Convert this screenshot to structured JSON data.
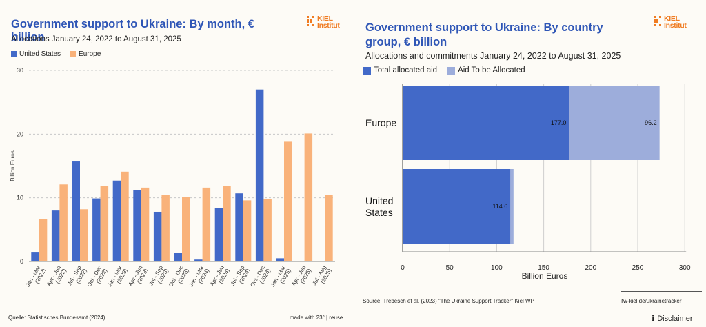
{
  "left": {
    "title": "Government support to Ukraine: By month, € billion",
    "subtitle": "Allocations January 24, 2022 to August 31, 2025",
    "legend": [
      "United States",
      "Europe"
    ],
    "logo_text": [
      "KIEL",
      "Institut"
    ],
    "source": "Quelle: Statistisches Bundesamt (2024)",
    "credit": "made with 23° | reuse"
  },
  "right": {
    "title": "Government support to Ukraine: By country group, € billion",
    "subtitle": "Allocations and commitments January 24, 2022 to August 31, 2025",
    "legend": [
      "Total allocated aid",
      "Aid To be Allocated"
    ],
    "logo_text": [
      "KIEL",
      "Institut"
    ],
    "source": "Source: Trebesch et al. (2023) \"The Ukraine Support Tracker\" Kiel WP",
    "link": "ifw-kiel.de/ukrainetracker",
    "disclaimer": "Disclaimer"
  },
  "colors": {
    "us": "#4269c8",
    "europe": "#f9b27a",
    "allocated": "#4269c8",
    "to_allocate": "#9daddb",
    "title": "#2f56b6",
    "logo": "#f07c22"
  },
  "chart_data": [
    {
      "type": "bar",
      "title": "Government support to Ukraine: By month, € billion",
      "ylabel": "Billion Euros",
      "xlabel": "",
      "ylim": [
        0,
        30
      ],
      "yticks": [
        0,
        10,
        20,
        30
      ],
      "categories": [
        "Jan - Mar (2022)",
        "Apr - Jun (2022)",
        "Jul - Sep (2022)",
        "Oct - Dec (2022)",
        "Jan - Mar (2023)",
        "Apr - Jun (2023)",
        "Jul - Sep (2023)",
        "Oct - Dec (2023)",
        "Jan - Mar (2024)",
        "Apr - Jun (2024)",
        "Jul - Sep (2024)",
        "Oct - Dec (2024)",
        "Jan - Mar (2025)",
        "Apr - Jun (2025)",
        "Jul - Aug (2025)"
      ],
      "category_lines": [
        [
          "Jan - Mar",
          "(2022)"
        ],
        [
          "Apr - Jun",
          "(2022)"
        ],
        [
          "Jul - Sep",
          "(2022)"
        ],
        [
          "Oct - Dec",
          "(2022)"
        ],
        [
          "Jan - Mar",
          "(2023)"
        ],
        [
          "Apr - Jun",
          "(2023)"
        ],
        [
          "Jul - Sep",
          "(2023)"
        ],
        [
          "Oct - Dec",
          "(2023)"
        ],
        [
          "Jan - Mar",
          "(2024)"
        ],
        [
          "Apr - Jun",
          "(2024)"
        ],
        [
          "Jul - Sep",
          "(2024)"
        ],
        [
          "Oct - Dec",
          "(2024)"
        ],
        [
          "Jan - Mar",
          "(2025)"
        ],
        [
          "Apr - Jun",
          "(2025)"
        ],
        [
          "Jul - Aug",
          "(2025)"
        ]
      ],
      "series": [
        {
          "name": "United States",
          "values": [
            1.4,
            8.0,
            15.7,
            9.9,
            12.7,
            11.2,
            7.8,
            1.3,
            0.3,
            8.4,
            10.7,
            27.0,
            0.5,
            0,
            0
          ]
        },
        {
          "name": "Europe",
          "values": [
            6.7,
            12.1,
            8.2,
            11.9,
            14.1,
            11.6,
            10.5,
            10.1,
            11.6,
            11.9,
            9.6,
            9.8,
            18.8,
            20.1,
            10.5
          ]
        }
      ]
    },
    {
      "type": "bar",
      "orientation": "horizontal",
      "stacked": true,
      "title": "Government support to Ukraine: By country group, € billion",
      "xlabel": "Billion Euros",
      "ylabel": "",
      "xlim": [
        0,
        300
      ],
      "xticks": [
        0,
        50,
        100,
        150,
        200,
        250,
        300
      ],
      "categories": [
        "Europe",
        "United States"
      ],
      "category_lines": [
        [
          "Europe"
        ],
        [
          "United",
          "States"
        ]
      ],
      "series": [
        {
          "name": "Total allocated aid",
          "values": [
            177.0,
            114.6
          ],
          "labels": [
            "177.0",
            "114.6"
          ]
        },
        {
          "name": "Aid To be Allocated",
          "values": [
            96.2,
            3.3
          ],
          "labels": [
            "96.2",
            ""
          ]
        }
      ]
    }
  ]
}
